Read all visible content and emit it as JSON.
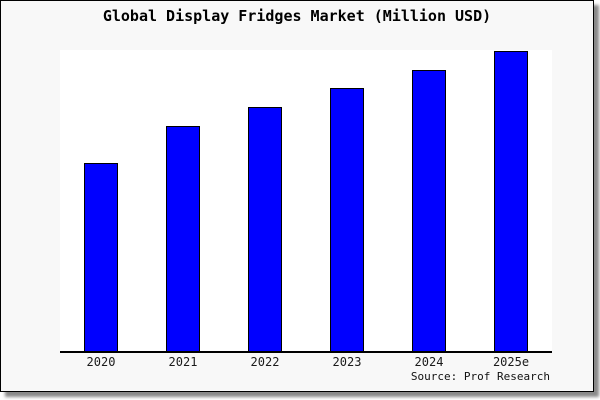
{
  "page": {
    "background": "#ffffff",
    "frame_background": "#f8f8f8"
  },
  "chart_data": {
    "type": "bar",
    "title": "Global Display Fridges Market (Million USD)",
    "categories": [
      "2020",
      "2021",
      "2022",
      "2023",
      "2024",
      "2025e"
    ],
    "values": [
      188,
      225,
      244,
      263,
      281,
      300
    ],
    "values_unit": "relative bar height in screen px; chart displays no numeric y-axis or data labels",
    "xlabel": "",
    "ylabel": "",
    "ylim": [
      0,
      301
    ],
    "grid": false,
    "legend": "none",
    "bar_color": "#0000ff",
    "bar_edge_color": "#000000",
    "plot_background": "#ffffff",
    "axis_color": "#000000",
    "source_label": "Source: Prof Research"
  }
}
